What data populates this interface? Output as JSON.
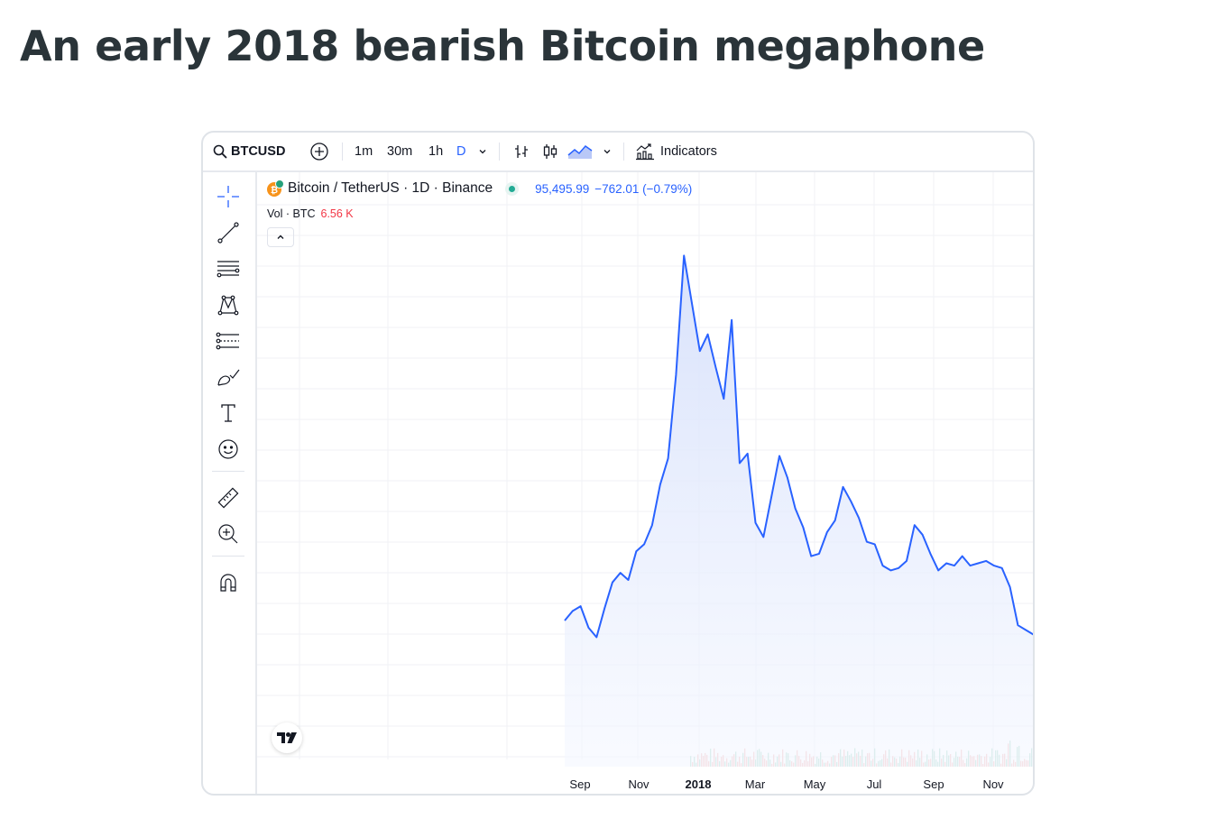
{
  "page": {
    "title": "An early 2018 bearish Bitcoin megaphone"
  },
  "toolbar": {
    "symbol": "BTCUSD",
    "intervals": [
      "1m",
      "30m",
      "1h",
      "D"
    ],
    "active_interval": "D",
    "indicators_label": "Indicators"
  },
  "legend": {
    "pair": "Bitcoin / TetherUS · 1D · Binance",
    "price": "95,495.99",
    "change": "−762.01 (−0.79%)",
    "vol_label": "Vol · BTC",
    "vol_value": "6.56 K"
  },
  "icons": {
    "search": "search-icon",
    "add": "plus-circle-icon",
    "chevron": "chevron-down-icon",
    "bars": "bar-chart-icon",
    "candles": "candlestick-icon",
    "area": "area-chart-icon",
    "indicators": "indicators-icon",
    "crosshair": "crosshair-icon",
    "trendline": "trend-line-icon",
    "fib": "fibonacci-icon",
    "pattern": "pattern-icon",
    "projection": "forecast-icon",
    "brush": "brush-icon",
    "text": "text-icon",
    "emoji": "emoji-icon",
    "ruler": "ruler-icon",
    "zoom": "zoom-in-icon",
    "magnet": "magnet-icon",
    "collapse": "chevron-up-icon",
    "logo": "tradingview-logo"
  },
  "colors": {
    "line": "#2962ff",
    "area_top": "#dfe6fb",
    "volume_up": "#a8d8c8",
    "volume_down": "#f4b8b8",
    "status_dot": "#22ab94"
  },
  "chart_data": {
    "type": "area",
    "series": [
      {
        "values": [
          4200,
          4600,
          4800,
          3900,
          3500,
          4700,
          5800,
          6200,
          5900,
          7100,
          7400,
          8200,
          9900,
          11000,
          14500,
          19500,
          17500,
          15500,
          16200,
          14800,
          13500,
          16800,
          10800,
          11200,
          8300,
          7700,
          9400,
          11100,
          10200,
          8900,
          8100,
          6900,
          7000,
          7900,
          8400,
          9800,
          9200,
          8500,
          7500,
          7400,
          6500,
          6300,
          6400,
          6700,
          8200,
          7800,
          7000,
          6300,
          6600,
          6500,
          6900,
          6500,
          6600,
          6700,
          6500,
          6400,
          5600,
          4000,
          3800,
          3600
        ]
      }
    ],
    "x_ticks": [
      "Sep",
      "Nov",
      "2018",
      "Mar",
      "May",
      "Jul",
      "Sep",
      "Nov"
    ],
    "grid": true
  }
}
